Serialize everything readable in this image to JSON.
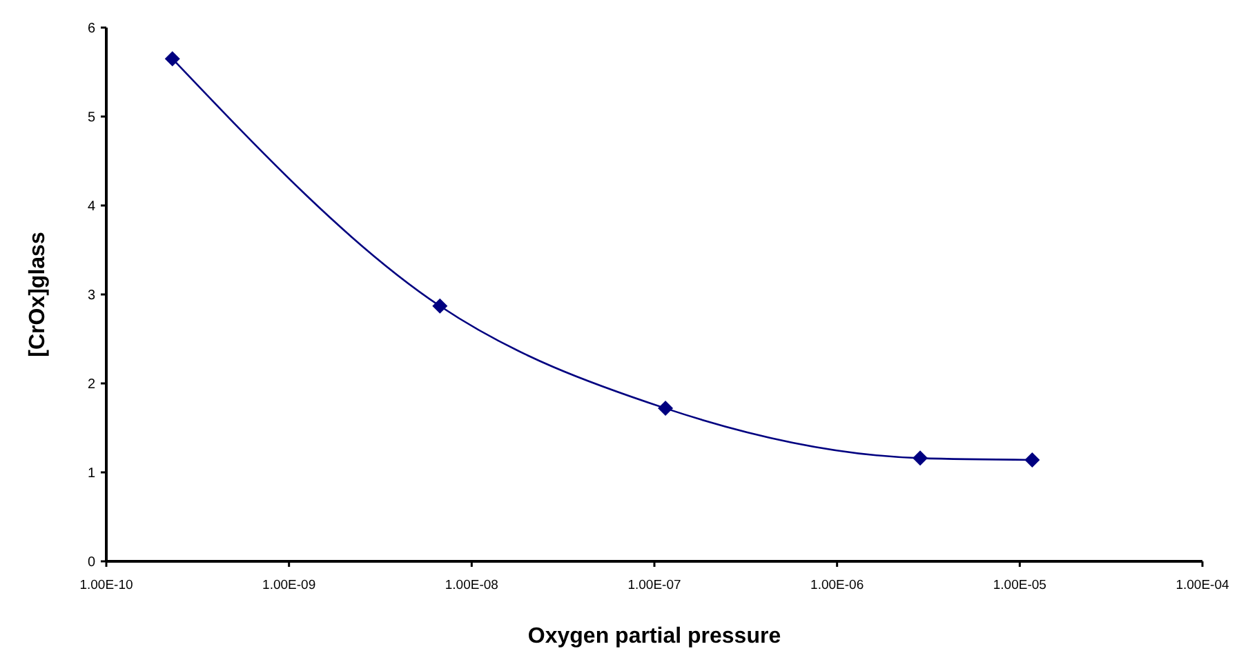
{
  "chart_data": {
    "type": "line",
    "xlabel": "Oxygen partial pressure",
    "ylabel": "[CrOx]glass",
    "log": "x",
    "grid": false,
    "marker": "diamond",
    "line_style": "solid",
    "xlim": [
      1e-10,
      0.0001
    ],
    "xticks": [
      {
        "value": 1e-10,
        "label": "1.00E-10"
      },
      {
        "value": 1e-09,
        "label": "1.00E-09"
      },
      {
        "value": 1e-08,
        "label": "1.00E-08"
      },
      {
        "value": 1e-07,
        "label": "1.00E-07"
      },
      {
        "value": 1e-06,
        "label": "1.00E-06"
      },
      {
        "value": 1e-05,
        "label": "1.00E-05"
      },
      {
        "value": 0.0001,
        "label": "1.00E-04"
      }
    ],
    "ylim": [
      0,
      6
    ],
    "yticks": [
      0,
      1,
      2,
      3,
      4,
      5,
      6
    ],
    "x": [
      2.3e-10,
      6.7e-09,
      1.15e-07,
      2.85e-06,
      1.17e-05
    ],
    "series": [
      {
        "color": "#000080",
        "values": [
          5.65,
          2.87,
          1.72,
          1.16,
          1.14
        ]
      }
    ]
  }
}
